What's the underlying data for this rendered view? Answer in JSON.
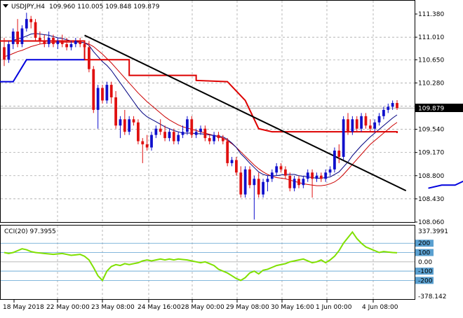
{
  "main_header": {
    "symbol": "USDJPY,H4",
    "ohlc": "109.960 110.005 109.848 109.879",
    "arrow_icon": "triangle-down-icon"
  },
  "main_axis": {
    "ticks": [
      "111.380",
      "111.010",
      "110.650",
      "110.280",
      "109.910",
      "109.540",
      "109.170",
      "108.800",
      "108.430",
      "108.060"
    ],
    "ymin": 108.06,
    "ymax": 111.38,
    "current_price": "109.879",
    "current_price_value": 109.879
  },
  "osc_header": {
    "label": "CCI(20) 97.3955"
  },
  "osc_axis": {
    "top_label": "337.3991",
    "bottom_label": "-378.142",
    "levels": [
      "200",
      "100",
      "0.00",
      "-100",
      "-200"
    ],
    "ymin": -378.142,
    "ymax": 337.3991
  },
  "time_axis": {
    "labels": [
      "18 May 2018",
      "22 May 00:00",
      "23 May 08:00",
      "24 May 16:00",
      "28 May 00:00",
      "29 May 08:00",
      "30 May 16:00",
      "1 Jun 00:00",
      "4 Jun 08:00"
    ]
  },
  "colors": {
    "bull": "#1010cc",
    "bear": "#e01010",
    "ma_fast": "#000080",
    "ma_slow": "#cc0000",
    "red_step": "#dd0000",
    "blue_step": "#0000dd",
    "trendline": "#000000",
    "cci_line": "#80e000",
    "cci_fill": "#5aa0d0"
  },
  "chart_data": {
    "type": "candlestick",
    "title": "USDJPY,H4",
    "candles": [
      {
        "o": 110.85,
        "h": 111.0,
        "l": 110.55,
        "c": 110.65
      },
      {
        "o": 110.65,
        "h": 110.95,
        "l": 110.6,
        "c": 110.9
      },
      {
        "o": 110.9,
        "h": 111.15,
        "l": 110.82,
        "c": 111.1
      },
      {
        "o": 111.1,
        "h": 111.3,
        "l": 110.85,
        "c": 110.9
      },
      {
        "o": 110.9,
        "h": 111.2,
        "l": 110.85,
        "c": 111.15
      },
      {
        "o": 111.15,
        "h": 111.4,
        "l": 111.1,
        "c": 111.3
      },
      {
        "o": 111.3,
        "h": 111.35,
        "l": 111.15,
        "c": 111.25
      },
      {
        "o": 111.25,
        "h": 111.3,
        "l": 110.95,
        "c": 111.0
      },
      {
        "o": 111.0,
        "h": 111.1,
        "l": 110.9,
        "c": 110.95
      },
      {
        "o": 110.95,
        "h": 111.05,
        "l": 110.85,
        "c": 110.9
      },
      {
        "o": 110.9,
        "h": 111.1,
        "l": 110.85,
        "c": 111.0
      },
      {
        "o": 111.0,
        "h": 111.05,
        "l": 110.85,
        "c": 110.9
      },
      {
        "o": 110.9,
        "h": 111.0,
        "l": 110.82,
        "c": 110.95
      },
      {
        "o": 110.95,
        "h": 111.05,
        "l": 110.85,
        "c": 110.9
      },
      {
        "o": 110.9,
        "h": 111.0,
        "l": 110.8,
        "c": 110.85
      },
      {
        "o": 110.85,
        "h": 110.95,
        "l": 110.8,
        "c": 110.9
      },
      {
        "o": 110.9,
        "h": 111.0,
        "l": 110.85,
        "c": 110.95
      },
      {
        "o": 110.95,
        "h": 111.0,
        "l": 110.85,
        "c": 110.9
      },
      {
        "o": 110.9,
        "h": 110.95,
        "l": 110.8,
        "c": 110.85
      },
      {
        "o": 110.85,
        "h": 110.95,
        "l": 110.45,
        "c": 110.5
      },
      {
        "o": 110.5,
        "h": 110.55,
        "l": 109.8,
        "c": 109.85
      },
      {
        "o": 109.85,
        "h": 110.25,
        "l": 109.55,
        "c": 110.2
      },
      {
        "o": 110.2,
        "h": 110.25,
        "l": 109.95,
        "c": 110.0
      },
      {
        "o": 110.0,
        "h": 110.3,
        "l": 109.95,
        "c": 110.25
      },
      {
        "o": 110.25,
        "h": 110.3,
        "l": 109.95,
        "c": 110.05
      },
      {
        "o": 110.05,
        "h": 110.15,
        "l": 109.55,
        "c": 109.6
      },
      {
        "o": 109.6,
        "h": 109.75,
        "l": 109.4,
        "c": 109.7
      },
      {
        "o": 109.7,
        "h": 109.85,
        "l": 109.45,
        "c": 109.5
      },
      {
        "o": 109.5,
        "h": 109.75,
        "l": 109.45,
        "c": 109.7
      },
      {
        "o": 109.7,
        "h": 109.75,
        "l": 109.6,
        "c": 109.65
      },
      {
        "o": 109.65,
        "h": 109.7,
        "l": 109.3,
        "c": 109.35
      },
      {
        "o": 109.35,
        "h": 109.4,
        "l": 109.0,
        "c": 109.3
      },
      {
        "o": 109.3,
        "h": 109.45,
        "l": 109.2,
        "c": 109.25
      },
      {
        "o": 109.25,
        "h": 109.5,
        "l": 109.2,
        "c": 109.45
      },
      {
        "o": 109.45,
        "h": 109.6,
        "l": 109.4,
        "c": 109.55
      },
      {
        "o": 109.55,
        "h": 109.7,
        "l": 109.45,
        "c": 109.5
      },
      {
        "o": 109.5,
        "h": 109.6,
        "l": 109.35,
        "c": 109.4
      },
      {
        "o": 109.4,
        "h": 109.55,
        "l": 109.35,
        "c": 109.5
      },
      {
        "o": 109.5,
        "h": 109.55,
        "l": 109.3,
        "c": 109.35
      },
      {
        "o": 109.35,
        "h": 109.5,
        "l": 109.3,
        "c": 109.45
      },
      {
        "o": 109.45,
        "h": 109.6,
        "l": 109.4,
        "c": 109.5
      },
      {
        "o": 109.5,
        "h": 109.75,
        "l": 109.45,
        "c": 109.7
      },
      {
        "o": 109.7,
        "h": 109.75,
        "l": 109.4,
        "c": 109.45
      },
      {
        "o": 109.45,
        "h": 109.55,
        "l": 109.4,
        "c": 109.5
      },
      {
        "o": 109.5,
        "h": 109.6,
        "l": 109.45,
        "c": 109.55
      },
      {
        "o": 109.55,
        "h": 109.6,
        "l": 109.35,
        "c": 109.4
      },
      {
        "o": 109.4,
        "h": 109.45,
        "l": 109.3,
        "c": 109.35
      },
      {
        "o": 109.35,
        "h": 109.5,
        "l": 109.3,
        "c": 109.45
      },
      {
        "o": 109.45,
        "h": 109.5,
        "l": 109.35,
        "c": 109.4
      },
      {
        "o": 109.4,
        "h": 109.45,
        "l": 109.3,
        "c": 109.35
      },
      {
        "o": 109.35,
        "h": 109.4,
        "l": 108.95,
        "c": 109.0
      },
      {
        "o": 109.0,
        "h": 109.1,
        "l": 108.95,
        "c": 109.05
      },
      {
        "o": 109.05,
        "h": 109.1,
        "l": 108.8,
        "c": 108.85
      },
      {
        "o": 108.85,
        "h": 108.95,
        "l": 108.45,
        "c": 108.5
      },
      {
        "o": 108.5,
        "h": 108.95,
        "l": 108.45,
        "c": 108.9
      },
      {
        "o": 108.9,
        "h": 108.95,
        "l": 108.6,
        "c": 108.65
      },
      {
        "o": 108.65,
        "h": 108.8,
        "l": 108.1,
        "c": 108.75
      },
      {
        "o": 108.75,
        "h": 108.85,
        "l": 108.45,
        "c": 108.5
      },
      {
        "o": 108.5,
        "h": 108.75,
        "l": 108.45,
        "c": 108.7
      },
      {
        "o": 108.7,
        "h": 108.8,
        "l": 108.55,
        "c": 108.75
      },
      {
        "o": 108.75,
        "h": 108.9,
        "l": 108.7,
        "c": 108.85
      },
      {
        "o": 108.85,
        "h": 109.0,
        "l": 108.8,
        "c": 108.95
      },
      {
        "o": 108.95,
        "h": 109.0,
        "l": 108.85,
        "c": 108.9
      },
      {
        "o": 108.9,
        "h": 108.95,
        "l": 108.75,
        "c": 108.8
      },
      {
        "o": 108.8,
        "h": 108.85,
        "l": 108.55,
        "c": 108.6
      },
      {
        "o": 108.6,
        "h": 108.8,
        "l": 108.55,
        "c": 108.75
      },
      {
        "o": 108.75,
        "h": 108.8,
        "l": 108.6,
        "c": 108.65
      },
      {
        "o": 108.65,
        "h": 108.8,
        "l": 108.6,
        "c": 108.75
      },
      {
        "o": 108.75,
        "h": 108.9,
        "l": 108.7,
        "c": 108.85
      },
      {
        "o": 108.85,
        "h": 108.9,
        "l": 108.45,
        "c": 108.75
      },
      {
        "o": 108.75,
        "h": 108.85,
        "l": 108.7,
        "c": 108.8
      },
      {
        "o": 108.8,
        "h": 108.85,
        "l": 108.7,
        "c": 108.75
      },
      {
        "o": 108.75,
        "h": 108.9,
        "l": 108.7,
        "c": 108.85
      },
      {
        "o": 108.85,
        "h": 108.95,
        "l": 108.8,
        "c": 108.9
      },
      {
        "o": 108.9,
        "h": 109.25,
        "l": 108.85,
        "c": 109.2
      },
      {
        "o": 109.2,
        "h": 109.3,
        "l": 109.0,
        "c": 109.1
      },
      {
        "o": 109.1,
        "h": 109.75,
        "l": 109.05,
        "c": 109.7
      },
      {
        "o": 109.7,
        "h": 109.8,
        "l": 109.45,
        "c": 109.5
      },
      {
        "o": 109.5,
        "h": 109.75,
        "l": 109.45,
        "c": 109.7
      },
      {
        "o": 109.7,
        "h": 109.75,
        "l": 109.5,
        "c": 109.55
      },
      {
        "o": 109.55,
        "h": 109.8,
        "l": 109.5,
        "c": 109.75
      },
      {
        "o": 109.75,
        "h": 109.8,
        "l": 109.55,
        "c": 109.6
      },
      {
        "o": 109.6,
        "h": 109.7,
        "l": 109.5,
        "c": 109.55
      },
      {
        "o": 109.55,
        "h": 109.7,
        "l": 109.5,
        "c": 109.65
      },
      {
        "o": 109.65,
        "h": 109.8,
        "l": 109.6,
        "c": 109.75
      },
      {
        "o": 109.75,
        "h": 109.9,
        "l": 109.7,
        "c": 109.85
      },
      {
        "o": 109.85,
        "h": 109.95,
        "l": 109.8,
        "c": 109.9
      },
      {
        "o": 109.9,
        "h": 110.0,
        "l": 109.85,
        "c": 109.96
      },
      {
        "o": 109.96,
        "h": 110.005,
        "l": 109.848,
        "c": 109.879
      }
    ],
    "ma_fast": [
      110.95,
      110.95,
      110.96,
      110.98,
      111.0,
      111.03,
      111.06,
      111.07,
      111.06,
      111.05,
      111.04,
      111.02,
      111.0,
      110.99,
      110.97,
      110.95,
      110.94,
      110.93,
      110.92,
      110.88,
      110.78,
      110.7,
      110.62,
      110.56,
      110.48,
      110.38,
      110.28,
      110.18,
      110.08,
      109.98,
      109.88,
      109.8,
      109.74,
      109.7,
      109.66,
      109.62,
      109.58,
      109.55,
      109.52,
      109.5,
      109.48,
      109.48,
      109.48,
      109.47,
      109.47,
      109.46,
      109.45,
      109.44,
      109.43,
      109.42,
      109.38,
      109.32,
      109.25,
      109.15,
      109.08,
      109.0,
      108.93,
      108.86,
      108.82,
      108.8,
      108.8,
      108.8,
      108.81,
      108.82,
      108.82,
      108.82,
      108.8,
      108.79,
      108.78,
      108.77,
      108.76,
      108.76,
      108.77,
      108.78,
      108.82,
      108.86,
      108.94,
      109.02,
      109.12,
      109.2,
      109.28,
      109.35,
      109.42,
      109.48,
      109.54,
      109.6,
      109.66,
      109.72,
      109.77
    ],
    "ma_slow": [
      110.7,
      110.72,
      110.75,
      110.78,
      110.8,
      110.83,
      110.86,
      110.88,
      110.9,
      110.91,
      110.92,
      110.93,
      110.93,
      110.93,
      110.93,
      110.93,
      110.93,
      110.93,
      110.92,
      110.9,
      110.86,
      110.8,
      110.74,
      110.67,
      110.6,
      110.52,
      110.44,
      110.36,
      110.28,
      110.2,
      110.12,
      110.05,
      109.98,
      109.92,
      109.86,
      109.8,
      109.74,
      109.69,
      109.65,
      109.61,
      109.58,
      109.56,
      109.54,
      109.52,
      109.5,
      109.48,
      109.46,
      109.44,
      109.42,
      109.4,
      109.36,
      109.31,
      109.25,
      109.18,
      109.11,
      109.04,
      108.97,
      108.91,
      108.86,
      108.82,
      108.79,
      108.77,
      108.76,
      108.75,
      108.73,
      108.71,
      108.69,
      108.67,
      108.66,
      108.65,
      108.64,
      108.64,
      108.65,
      108.67,
      108.7,
      108.75,
      108.82,
      108.9,
      108.98,
      109.06,
      109.14,
      109.22,
      109.3,
      109.36,
      109.42,
      109.48,
      109.54,
      109.6,
      109.65
    ],
    "red_step": [
      [
        13,
        110.95
      ],
      [
        23,
        110.95
      ],
      [
        23,
        110.65
      ],
      [
        43,
        110.65
      ],
      [
        43,
        110.4
      ],
      [
        56,
        110.4
      ],
      [
        56,
        110.3
      ],
      [
        72,
        110.3
      ],
      [
        75,
        110.1
      ],
      [
        80,
        109.6
      ],
      [
        85,
        109.48
      ],
      [
        125,
        109.48
      ],
      [
        125,
        109.48
      ],
      [
        155,
        109.48
      ],
      [
        155,
        109.48
      ],
      [
        155,
        109.45
      ],
      [
        155,
        109.45
      ],
      [
        115,
        109.45
      ],
      [
        115,
        109.45
      ],
      [
        116,
        109.45
      ],
      [
        116,
        109.45
      ]
    ],
    "red_step_points": [
      [
        0,
        110.95
      ],
      [
        23,
        110.95
      ],
      [
        23,
        110.65
      ],
      [
        43,
        110.65
      ],
      [
        43,
        110.4
      ],
      [
        56,
        110.4
      ],
      [
        56,
        110.3
      ],
      [
        72,
        110.3
      ],
      [
        76,
        110.0
      ],
      [
        80,
        109.55
      ],
      [
        85,
        109.48
      ],
      [
        115,
        109.48
      ],
      [
        115,
        109.48
      ],
      [
        115,
        109.48
      ],
      [
        115,
        109.45
      ]
    ],
    "red_step_main": [
      [
        0,
        110.95
      ],
      [
        23,
        110.95
      ],
      [
        23,
        110.65
      ],
      [
        43,
        110.65
      ],
      [
        43,
        110.4
      ],
      [
        56,
        110.4
      ],
      [
        56,
        110.3
      ],
      [
        72,
        110.3
      ],
      [
        76,
        109.9
      ],
      [
        80,
        109.5
      ],
      [
        88,
        109.48
      ],
      [
        115,
        109.48
      ],
      [
        115,
        109.45
      ],
      [
        116,
        109.45
      ],
      [
        116,
        109.45
      ]
    ],
    "blue_step": [
      [
        -2,
        110.3
      ],
      [
        2,
        110.3
      ],
      [
        8,
        110.65
      ],
      [
        28,
        110.65
      ]
    ],
    "blue_rise": [
      [
        100,
        108.6
      ],
      [
        103,
        108.65
      ],
      [
        107,
        108.65
      ],
      [
        110,
        108.75
      ],
      [
        114,
        108.75
      ],
      [
        117,
        108.95
      ],
      [
        121,
        109.1
      ],
      [
        123,
        109.2
      ],
      [
        125,
        109.22
      ]
    ],
    "trendline": [
      [
        26,
        111.04
      ],
      [
        123,
        108.56
      ]
    ],
    "cci": [
      100,
      90,
      100,
      120,
      140,
      130,
      110,
      100,
      95,
      90,
      85,
      80,
      85,
      90,
      80,
      70,
      75,
      80,
      60,
      20,
      -60,
      -150,
      -200,
      -100,
      -50,
      -30,
      -40,
      -20,
      -30,
      -20,
      -10,
      10,
      20,
      10,
      20,
      30,
      20,
      30,
      20,
      30,
      25,
      20,
      10,
      0,
      -10,
      0,
      -20,
      -40,
      -80,
      -100,
      -120,
      -150,
      -180,
      -200,
      -170,
      -120,
      -100,
      -130,
      -90,
      -80,
      -60,
      -40,
      -30,
      -20,
      0,
      10,
      20,
      30,
      10,
      -10,
      0,
      20,
      -10,
      20,
      60,
      120,
      200,
      260,
      320,
      250,
      200,
      160,
      140,
      120,
      100,
      110,
      105,
      100,
      97.3955
    ],
    "cci_tail": [
      [
        0,
        100
      ],
      [
        6,
        95
      ],
      [
        10,
        120
      ],
      [
        18,
        65
      ],
      [
        20,
        20
      ],
      [
        28,
        0
      ],
      [
        32,
        70
      ],
      [
        36,
        30
      ],
      [
        44,
        -120
      ],
      [
        47,
        -190
      ],
      [
        50,
        -100
      ],
      [
        55,
        -40
      ],
      [
        62,
        10
      ],
      [
        72,
        30
      ],
      [
        80,
        20
      ],
      [
        88,
        -30
      ],
      [
        95,
        -150
      ],
      [
        100,
        -190
      ],
      [
        104,
        -120
      ],
      [
        110,
        -80
      ],
      [
        120,
        -40
      ],
      [
        125,
        80
      ],
      [
        130,
        40
      ],
      [
        136,
        90
      ],
      [
        140,
        70
      ],
      [
        150,
        100
      ],
      [
        155,
        90
      ],
      [
        160,
        70
      ],
      [
        164,
        -10
      ],
      [
        168,
        -20
      ],
      [
        172,
        10
      ],
      [
        176,
        60
      ],
      [
        180,
        150
      ],
      [
        184,
        250
      ],
      [
        188,
        330
      ],
      [
        192,
        250
      ],
      [
        198,
        200
      ],
      [
        205,
        150
      ],
      [
        212,
        120
      ],
      [
        218,
        100
      ],
      [
        225,
        110
      ],
      [
        232,
        105
      ],
      [
        240,
        97.3955
      ]
    ]
  }
}
